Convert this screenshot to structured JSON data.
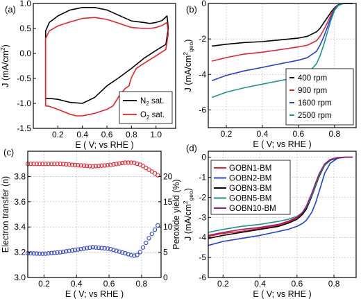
{
  "chart_data": [
    {
      "panel": "(a)",
      "type": "line",
      "xlabel": "E ( V; vs RHE )",
      "ylabel": "J (mA/cm²)",
      "xlim": [
        0.0,
        1.16
      ],
      "ylim": [
        -1.5,
        1.0
      ],
      "xticks": [
        0.2,
        0.4,
        0.6,
        0.8,
        1.0
      ],
      "xtick_labels": [
        "0.2",
        "0.4",
        "0.6",
        "0.8",
        "1.0"
      ],
      "yticks": [
        -1.5,
        -1.0,
        -0.5,
        0.0,
        0.5,
        1.0
      ],
      "ytick_labels": [
        "-1.5",
        "-1.0",
        "-0.5",
        "0.0",
        "0.5",
        "1.0"
      ],
      "grid": false,
      "legend_position": "bottom-right",
      "series": [
        {
          "name": "N2 sat.",
          "legend_label": [
            "N",
            "2",
            " sat."
          ],
          "color": "#000000",
          "x": [
            0.1,
            0.1,
            0.13,
            0.2,
            0.3,
            0.4,
            0.5,
            0.6,
            0.7,
            0.8,
            0.9,
            0.95,
            1.0,
            1.05,
            1.09,
            1.1,
            1.08,
            1.0,
            0.9,
            0.8,
            0.7,
            0.6,
            0.5,
            0.4,
            0.3,
            0.2,
            0.13,
            0.1
          ],
          "y": [
            -0.9,
            0.45,
            0.62,
            0.75,
            0.87,
            0.92,
            0.92,
            0.87,
            0.76,
            0.65,
            0.62,
            0.6,
            0.62,
            0.66,
            0.75,
            0.5,
            0.18,
            0.06,
            -0.1,
            -0.3,
            -0.48,
            -0.65,
            -0.88,
            -1.0,
            -0.98,
            -0.92,
            -0.9,
            -0.9
          ]
        },
        {
          "name": "O2 sat.",
          "legend_label": [
            "O",
            "2",
            " sat."
          ],
          "color": "#e8202a",
          "x": [
            0.1,
            0.1,
            0.13,
            0.2,
            0.3,
            0.4,
            0.5,
            0.6,
            0.7,
            0.8,
            0.9,
            0.95,
            1.0,
            1.05,
            1.09,
            1.1,
            1.08,
            1.0,
            0.9,
            0.84,
            0.8,
            0.78,
            0.75,
            0.7,
            0.65,
            0.6,
            0.5,
            0.4,
            0.35,
            0.3,
            0.2,
            0.13,
            0.1
          ],
          "y": [
            -1.05,
            0.3,
            0.45,
            0.55,
            0.63,
            0.7,
            0.72,
            0.68,
            0.6,
            0.52,
            0.5,
            0.5,
            0.52,
            0.56,
            0.62,
            0.4,
            0.08,
            -0.05,
            -0.2,
            -0.3,
            -0.48,
            -0.65,
            -0.7,
            -0.85,
            -1.05,
            -1.12,
            -1.2,
            -1.25,
            -1.25,
            -1.22,
            -1.12,
            -1.06,
            -1.05
          ]
        }
      ]
    },
    {
      "panel": "(b)",
      "type": "line",
      "xlabel": "E ( V; vs RHE )",
      "ylabel": "J (mA/cm²geo)",
      "xlim": [
        0.1,
        0.92
      ],
      "ylim": [
        -7,
        0
      ],
      "xticks": [
        0.2,
        0.4,
        0.6,
        0.8
      ],
      "xtick_labels": [
        "0.2",
        "0.4",
        "0.6",
        "0.8"
      ],
      "yticks": [
        -6,
        -4,
        -2,
        0
      ],
      "ytick_labels": [
        "-6",
        "-4",
        "-2",
        "0"
      ],
      "grid": true,
      "legend_position": "bottom-right",
      "series": [
        {
          "name": "400 rpm",
          "color": "#000000",
          "x": [
            0.12,
            0.2,
            0.3,
            0.4,
            0.5,
            0.6,
            0.65,
            0.7,
            0.72,
            0.74,
            0.76,
            0.78,
            0.8,
            0.82,
            0.85,
            0.9
          ],
          "y": [
            -2.4,
            -2.3,
            -2.2,
            -2.15,
            -2.05,
            -1.95,
            -1.85,
            -1.6,
            -1.4,
            -1.1,
            -0.8,
            -0.5,
            -0.25,
            -0.08,
            0.0,
            0.0
          ]
        },
        {
          "name": "900 rpm",
          "color": "#e8202a",
          "x": [
            0.12,
            0.2,
            0.3,
            0.4,
            0.5,
            0.6,
            0.65,
            0.7,
            0.72,
            0.74,
            0.76,
            0.78,
            0.8,
            0.82,
            0.85,
            0.9
          ],
          "y": [
            -3.25,
            -3.05,
            -2.85,
            -2.75,
            -2.6,
            -2.45,
            -2.35,
            -2.1,
            -1.85,
            -1.5,
            -1.1,
            -0.65,
            -0.3,
            -0.1,
            0.0,
            0.0
          ]
        },
        {
          "name": "1600 rpm",
          "color": "#1f3fd8",
          "x": [
            0.12,
            0.2,
            0.3,
            0.4,
            0.5,
            0.6,
            0.65,
            0.7,
            0.72,
            0.74,
            0.76,
            0.78,
            0.8,
            0.82,
            0.85,
            0.9
          ],
          "y": [
            -4.35,
            -4.05,
            -3.8,
            -3.6,
            -3.4,
            -3.2,
            -3.05,
            -2.7,
            -2.35,
            -1.9,
            -1.35,
            -0.8,
            -0.35,
            -0.1,
            0.0,
            0.0
          ]
        },
        {
          "name": "2500 rpm",
          "color": "#17968a",
          "x": [
            0.12,
            0.2,
            0.3,
            0.4,
            0.5,
            0.6,
            0.65,
            0.7,
            0.72,
            0.74,
            0.76,
            0.78,
            0.8,
            0.82,
            0.85,
            0.9
          ],
          "y": [
            -5.3,
            -5.0,
            -4.75,
            -4.55,
            -4.35,
            -4.15,
            -3.95,
            -3.4,
            -2.95,
            -2.35,
            -1.65,
            -0.95,
            -0.4,
            -0.12,
            0.0,
            0.0
          ]
        }
      ]
    },
    {
      "panel": "(c)",
      "type": "scatter",
      "xlabel": "E ( V; vs RHE )",
      "ylabel_left": "Electron transfer (n)",
      "ylabel_right": "Peroxide yield (%)",
      "xlim": [
        0.1,
        0.92
      ],
      "ylim_left": [
        3.0,
        4.0
      ],
      "ylim_right": [
        0,
        25
      ],
      "xticks": [
        0.2,
        0.4,
        0.6,
        0.8
      ],
      "xtick_labels": [
        "0.2",
        "0.4",
        "0.6",
        "0.8"
      ],
      "yticks_left": [
        3.0,
        3.2,
        3.4,
        3.6,
        3.8
      ],
      "ytick_labels_left": [
        "3.0",
        "3.2",
        "3.4",
        "3.6",
        "3.8"
      ],
      "yticks_right": [
        0,
        5,
        10,
        15,
        20
      ],
      "ytick_labels_right": [
        "0",
        "5",
        "10",
        "15",
        "20"
      ],
      "grid": true,
      "series": [
        {
          "name": "Electron transfer (n)",
          "color": "#e8202a",
          "axis": "left",
          "x": [
            0.1,
            0.2,
            0.3,
            0.4,
            0.5,
            0.6,
            0.7,
            0.75,
            0.8,
            0.85,
            0.9
          ],
          "y": [
            3.9,
            3.9,
            3.9,
            3.89,
            3.88,
            3.89,
            3.91,
            3.91,
            3.89,
            3.85,
            3.81
          ]
        },
        {
          "name": "Peroxide yield (%)",
          "color": "#2b3fd4",
          "axis": "right",
          "x": [
            0.1,
            0.2,
            0.3,
            0.4,
            0.5,
            0.6,
            0.7,
            0.75,
            0.78,
            0.8,
            0.85,
            0.9
          ],
          "y": [
            4.8,
            4.7,
            5.0,
            5.5,
            6.0,
            5.7,
            4.8,
            4.3,
            4.5,
            5.5,
            8.0,
            10.3
          ]
        }
      ]
    },
    {
      "panel": "(d)",
      "type": "line",
      "xlabel": "E ( V; vs RHE )",
      "ylabel": "J (mA/cm²geo)",
      "xlim": [
        0.12,
        0.92
      ],
      "ylim": [
        -6,
        0.3
      ],
      "xticks": [
        0.2,
        0.4,
        0.6,
        0.8
      ],
      "xtick_labels": [
        "0.2",
        "0.4",
        "0.6",
        "0.8"
      ],
      "yticks": [
        -6,
        -5,
        -4,
        -3,
        -2,
        -1,
        0
      ],
      "ytick_labels": [
        "-6",
        "-5",
        "-4",
        "-3",
        "-2",
        "-1",
        "0"
      ],
      "grid": true,
      "legend_position": "top-left",
      "series": [
        {
          "name": "GOBN1-BM",
          "color": "#e8202a",
          "x": [
            0.12,
            0.2,
            0.3,
            0.4,
            0.5,
            0.55,
            0.6,
            0.63,
            0.65,
            0.68,
            0.7,
            0.72,
            0.75,
            0.78,
            0.82,
            0.86,
            0.9
          ],
          "y": [
            -3.95,
            -3.8,
            -3.7,
            -3.55,
            -3.4,
            -3.25,
            -3.05,
            -2.8,
            -2.5,
            -1.85,
            -1.35,
            -0.85,
            -0.35,
            -0.12,
            -0.02,
            0.0,
            0.0
          ]
        },
        {
          "name": "GOBN2-BM",
          "color": "#1f3fd8",
          "x": [
            0.12,
            0.2,
            0.3,
            0.4,
            0.5,
            0.55,
            0.6,
            0.63,
            0.65,
            0.68,
            0.7,
            0.72,
            0.75,
            0.78,
            0.82,
            0.86,
            0.9
          ],
          "y": [
            -4.4,
            -4.2,
            -4.05,
            -3.9,
            -3.7,
            -3.6,
            -3.45,
            -3.3,
            -3.15,
            -2.75,
            -2.3,
            -1.7,
            -0.8,
            -0.3,
            -0.05,
            0.0,
            0.0
          ]
        },
        {
          "name": "GOBN3-BM",
          "color": "#000000",
          "x": [
            0.12,
            0.2,
            0.3,
            0.4,
            0.5,
            0.55,
            0.6,
            0.63,
            0.65,
            0.68,
            0.7,
            0.72,
            0.75,
            0.78,
            0.82,
            0.86,
            0.9
          ],
          "y": [
            -4.05,
            -3.9,
            -3.75,
            -3.6,
            -3.45,
            -3.3,
            -3.1,
            -2.85,
            -2.6,
            -1.95,
            -1.45,
            -0.95,
            -0.4,
            -0.15,
            -0.03,
            0.0,
            0.0
          ]
        },
        {
          "name": "GOBN5-BM",
          "color": "#17968a",
          "x": [
            0.12,
            0.2,
            0.3,
            0.4,
            0.5,
            0.55,
            0.6,
            0.63,
            0.65,
            0.68,
            0.7,
            0.72,
            0.75,
            0.78,
            0.82,
            0.86,
            0.9
          ],
          "y": [
            -3.75,
            -3.6,
            -3.45,
            -3.35,
            -3.2,
            -3.1,
            -2.95,
            -2.75,
            -2.5,
            -1.9,
            -1.4,
            -0.9,
            -0.38,
            -0.13,
            -0.02,
            0.0,
            0.0
          ]
        },
        {
          "name": "GOBN10-BM",
          "color": "#a0187a",
          "x": [
            0.12,
            0.2,
            0.3,
            0.4,
            0.5,
            0.55,
            0.6,
            0.63,
            0.65,
            0.68,
            0.7,
            0.72,
            0.75,
            0.78,
            0.82,
            0.86,
            0.9
          ],
          "y": [
            -3.9,
            -3.75,
            -3.6,
            -3.5,
            -3.35,
            -3.2,
            -3.0,
            -2.75,
            -2.45,
            -1.8,
            -1.3,
            -0.82,
            -0.33,
            -0.11,
            -0.02,
            0.0,
            0.0
          ]
        }
      ]
    }
  ]
}
